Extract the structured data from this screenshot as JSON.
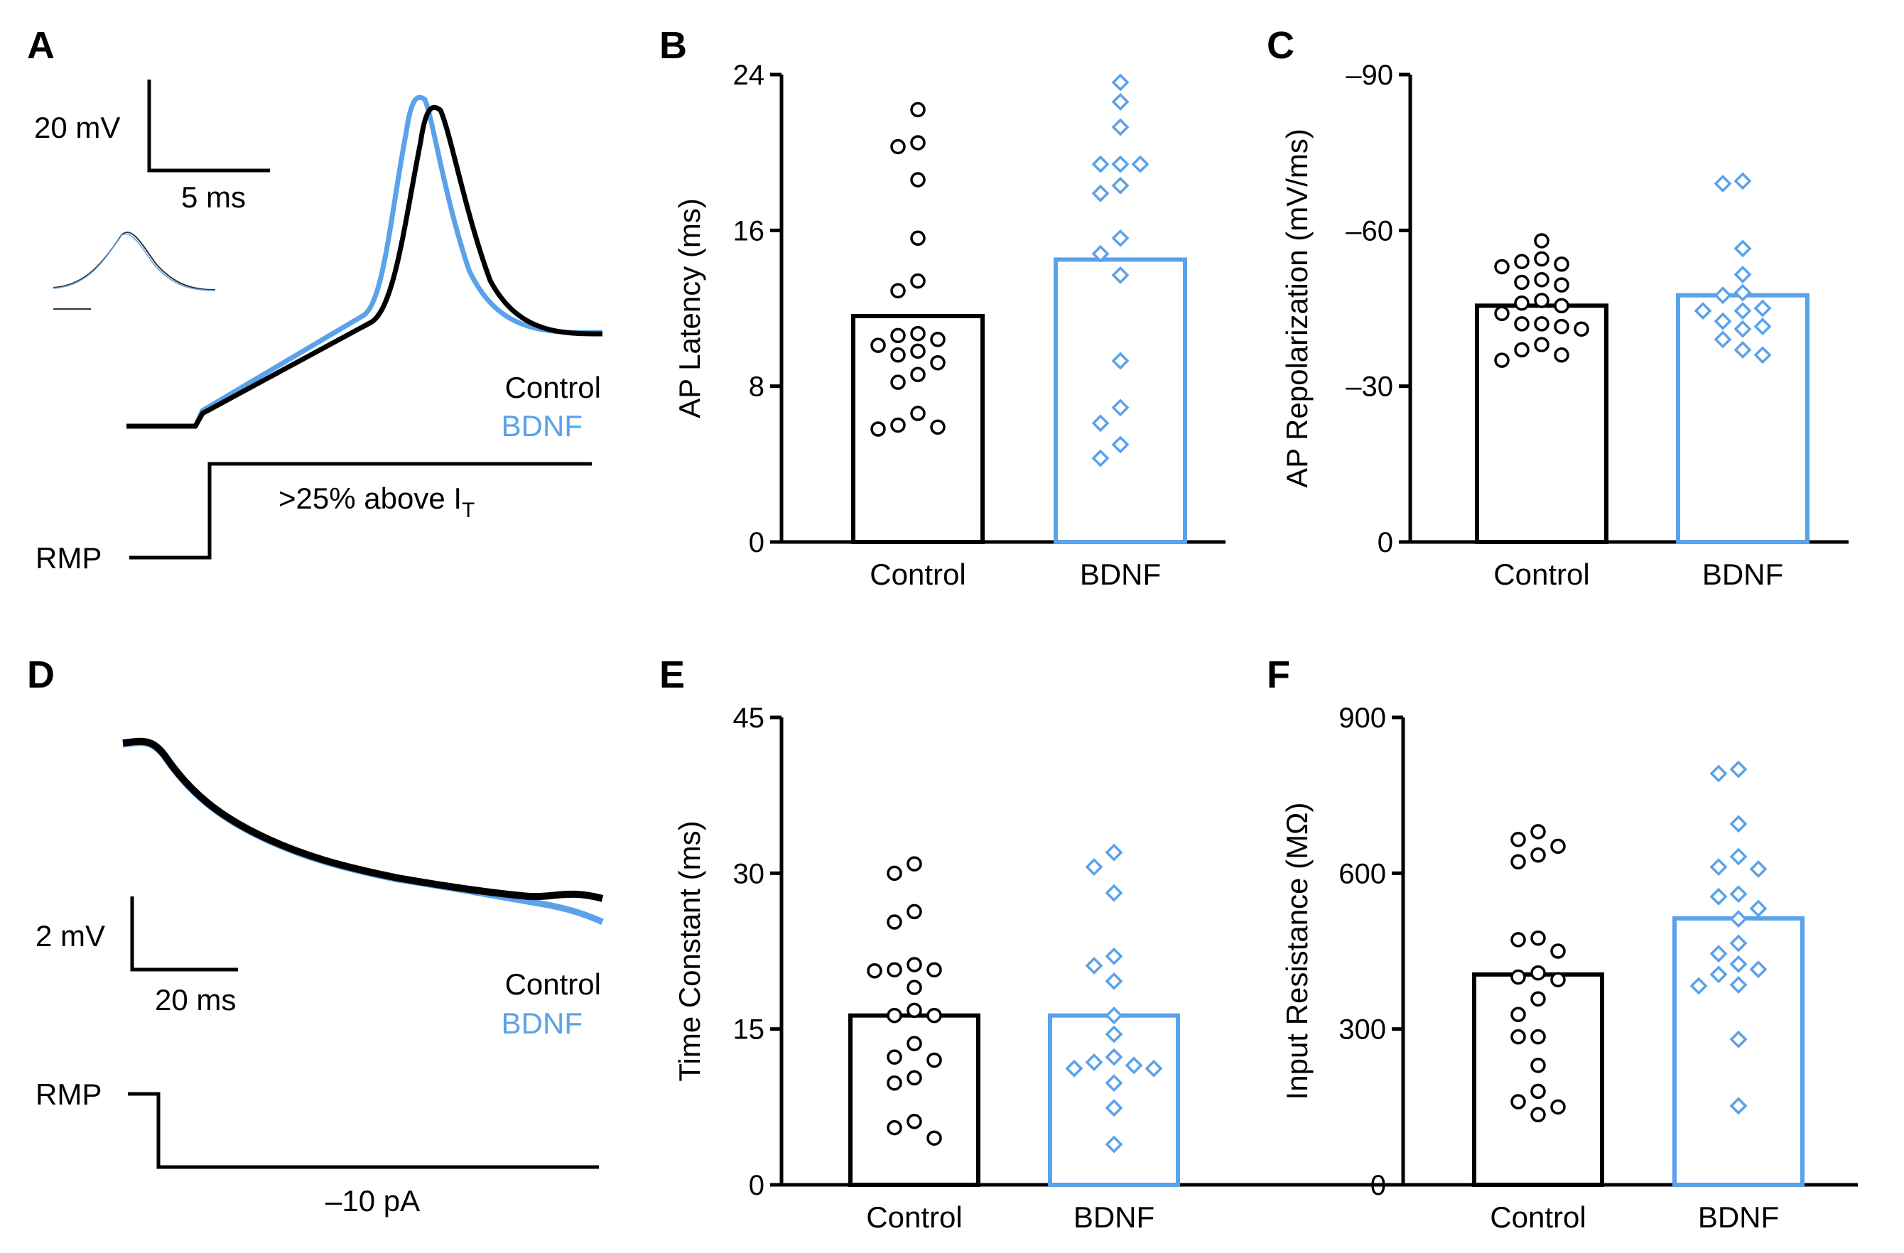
{
  "colors": {
    "control": "#000000",
    "bdnf": "#5aa2ea"
  },
  "panels": {
    "A": "A",
    "B": "B",
    "C": "C",
    "D": "D",
    "E": "E",
    "F": "F"
  },
  "trace_a": {
    "scale_v": "20 mV",
    "scale_t": "5 ms",
    "legend_control": "Control",
    "legend_bdnf": "BDNF",
    "stim_label": ">25% above I",
    "stim_sub": "T",
    "rmp": "RMP"
  },
  "trace_d": {
    "scale_v": "2 mV",
    "scale_t": "20 ms",
    "legend_control": "Control",
    "legend_bdnf": "BDNF",
    "stim_label": "–10 pA",
    "rmp": "RMP"
  },
  "chart_data": [
    {
      "panel": "B",
      "type": "bar",
      "categories": [
        "Control",
        "BDNF"
      ],
      "ylabel": "AP Latency (ms)",
      "ylim": [
        0,
        24
      ],
      "yticks": [
        0,
        8,
        16,
        24
      ],
      "tick_labels": [
        "0",
        "8",
        "16",
        "24"
      ],
      "bar_values": [
        11.6,
        14.5
      ],
      "points": [
        [
          22.2,
          20.5,
          20.3,
          18.6,
          15.6,
          13.4,
          12.9,
          10.7,
          10.6,
          10.4,
          10.1,
          9.8,
          9.6,
          9.2,
          8.6,
          8.2,
          6.6,
          6.0,
          5.9,
          5.8
        ],
        [
          23.6,
          22.6,
          21.3,
          19.4,
          19.4,
          19.4,
          18.3,
          17.9,
          15.6,
          14.8,
          13.7,
          9.3,
          6.9,
          6.1,
          5.0,
          4.3
        ]
      ]
    },
    {
      "panel": "C",
      "type": "bar",
      "categories": [
        "Control",
        "BDNF"
      ],
      "ylabel": "AP Repolarization (mV/ms)",
      "ylim": [
        0,
        -90
      ],
      "yticks": [
        0,
        -30,
        -60,
        -90
      ],
      "tick_labels": [
        "0",
        "–30",
        "–60",
        "–90"
      ],
      "bar_values": [
        -45.5,
        -47.5
      ],
      "points": [
        [
          -58,
          -54.5,
          -54,
          -53.5,
          -53,
          -50.5,
          -50,
          -49.5,
          -46.5,
          -46,
          -45.5,
          -44,
          -42,
          -42,
          -41.5,
          -41,
          -38,
          -37,
          -36,
          -35
        ],
        [
          -69.5,
          -69,
          -56.5,
          -51.5,
          -48,
          -47.5,
          -45,
          -44.5,
          -44.5,
          -42.5,
          -41.5,
          -41,
          -39,
          -37,
          -36
        ]
      ]
    },
    {
      "panel": "E",
      "type": "bar",
      "categories": [
        "Control",
        "BDNF"
      ],
      "ylabel": "Time Constant (ms)",
      "ylim": [
        0,
        45
      ],
      "yticks": [
        0,
        15,
        30,
        45
      ],
      "tick_labels": [
        "0",
        "15",
        "30",
        "45"
      ],
      "bar_values": [
        16.3,
        16.3
      ],
      "points": [
        [
          30.9,
          30.0,
          26.3,
          25.3,
          21.2,
          20.7,
          20.7,
          20.6,
          19.0,
          16.8,
          16.3,
          16.3,
          13.6,
          12.3,
          12.0,
          10.3,
          9.8,
          6.1,
          5.5,
          4.5
        ],
        [
          32.0,
          30.6,
          28.1,
          22.0,
          21.1,
          19.6,
          16.3,
          14.5,
          12.3,
          11.8,
          11.5,
          11.2,
          11.2,
          9.8,
          7.4,
          3.9
        ]
      ]
    },
    {
      "panel": "F",
      "type": "bar",
      "categories": [
        "Control",
        "BDNF"
      ],
      "ylabel": "Input Resistance (MΩ)",
      "ylim": [
        0,
        900
      ],
      "yticks": [
        0,
        300,
        600,
        900
      ],
      "tick_labels": [
        "0",
        "300",
        "600",
        "900"
      ],
      "bar_values": [
        405,
        513
      ],
      "points": [
        [
          680,
          665,
          652,
          635,
          622,
          475,
          472,
          450,
          408,
          400,
          395,
          358,
          328,
          285,
          285,
          230,
          180,
          160,
          150,
          135
        ],
        [
          800,
          792,
          695,
          632,
          612,
          608,
          560,
          555,
          532,
          512,
          465,
          445,
          425,
          415,
          405,
          385,
          383,
          280,
          152
        ]
      ]
    }
  ]
}
